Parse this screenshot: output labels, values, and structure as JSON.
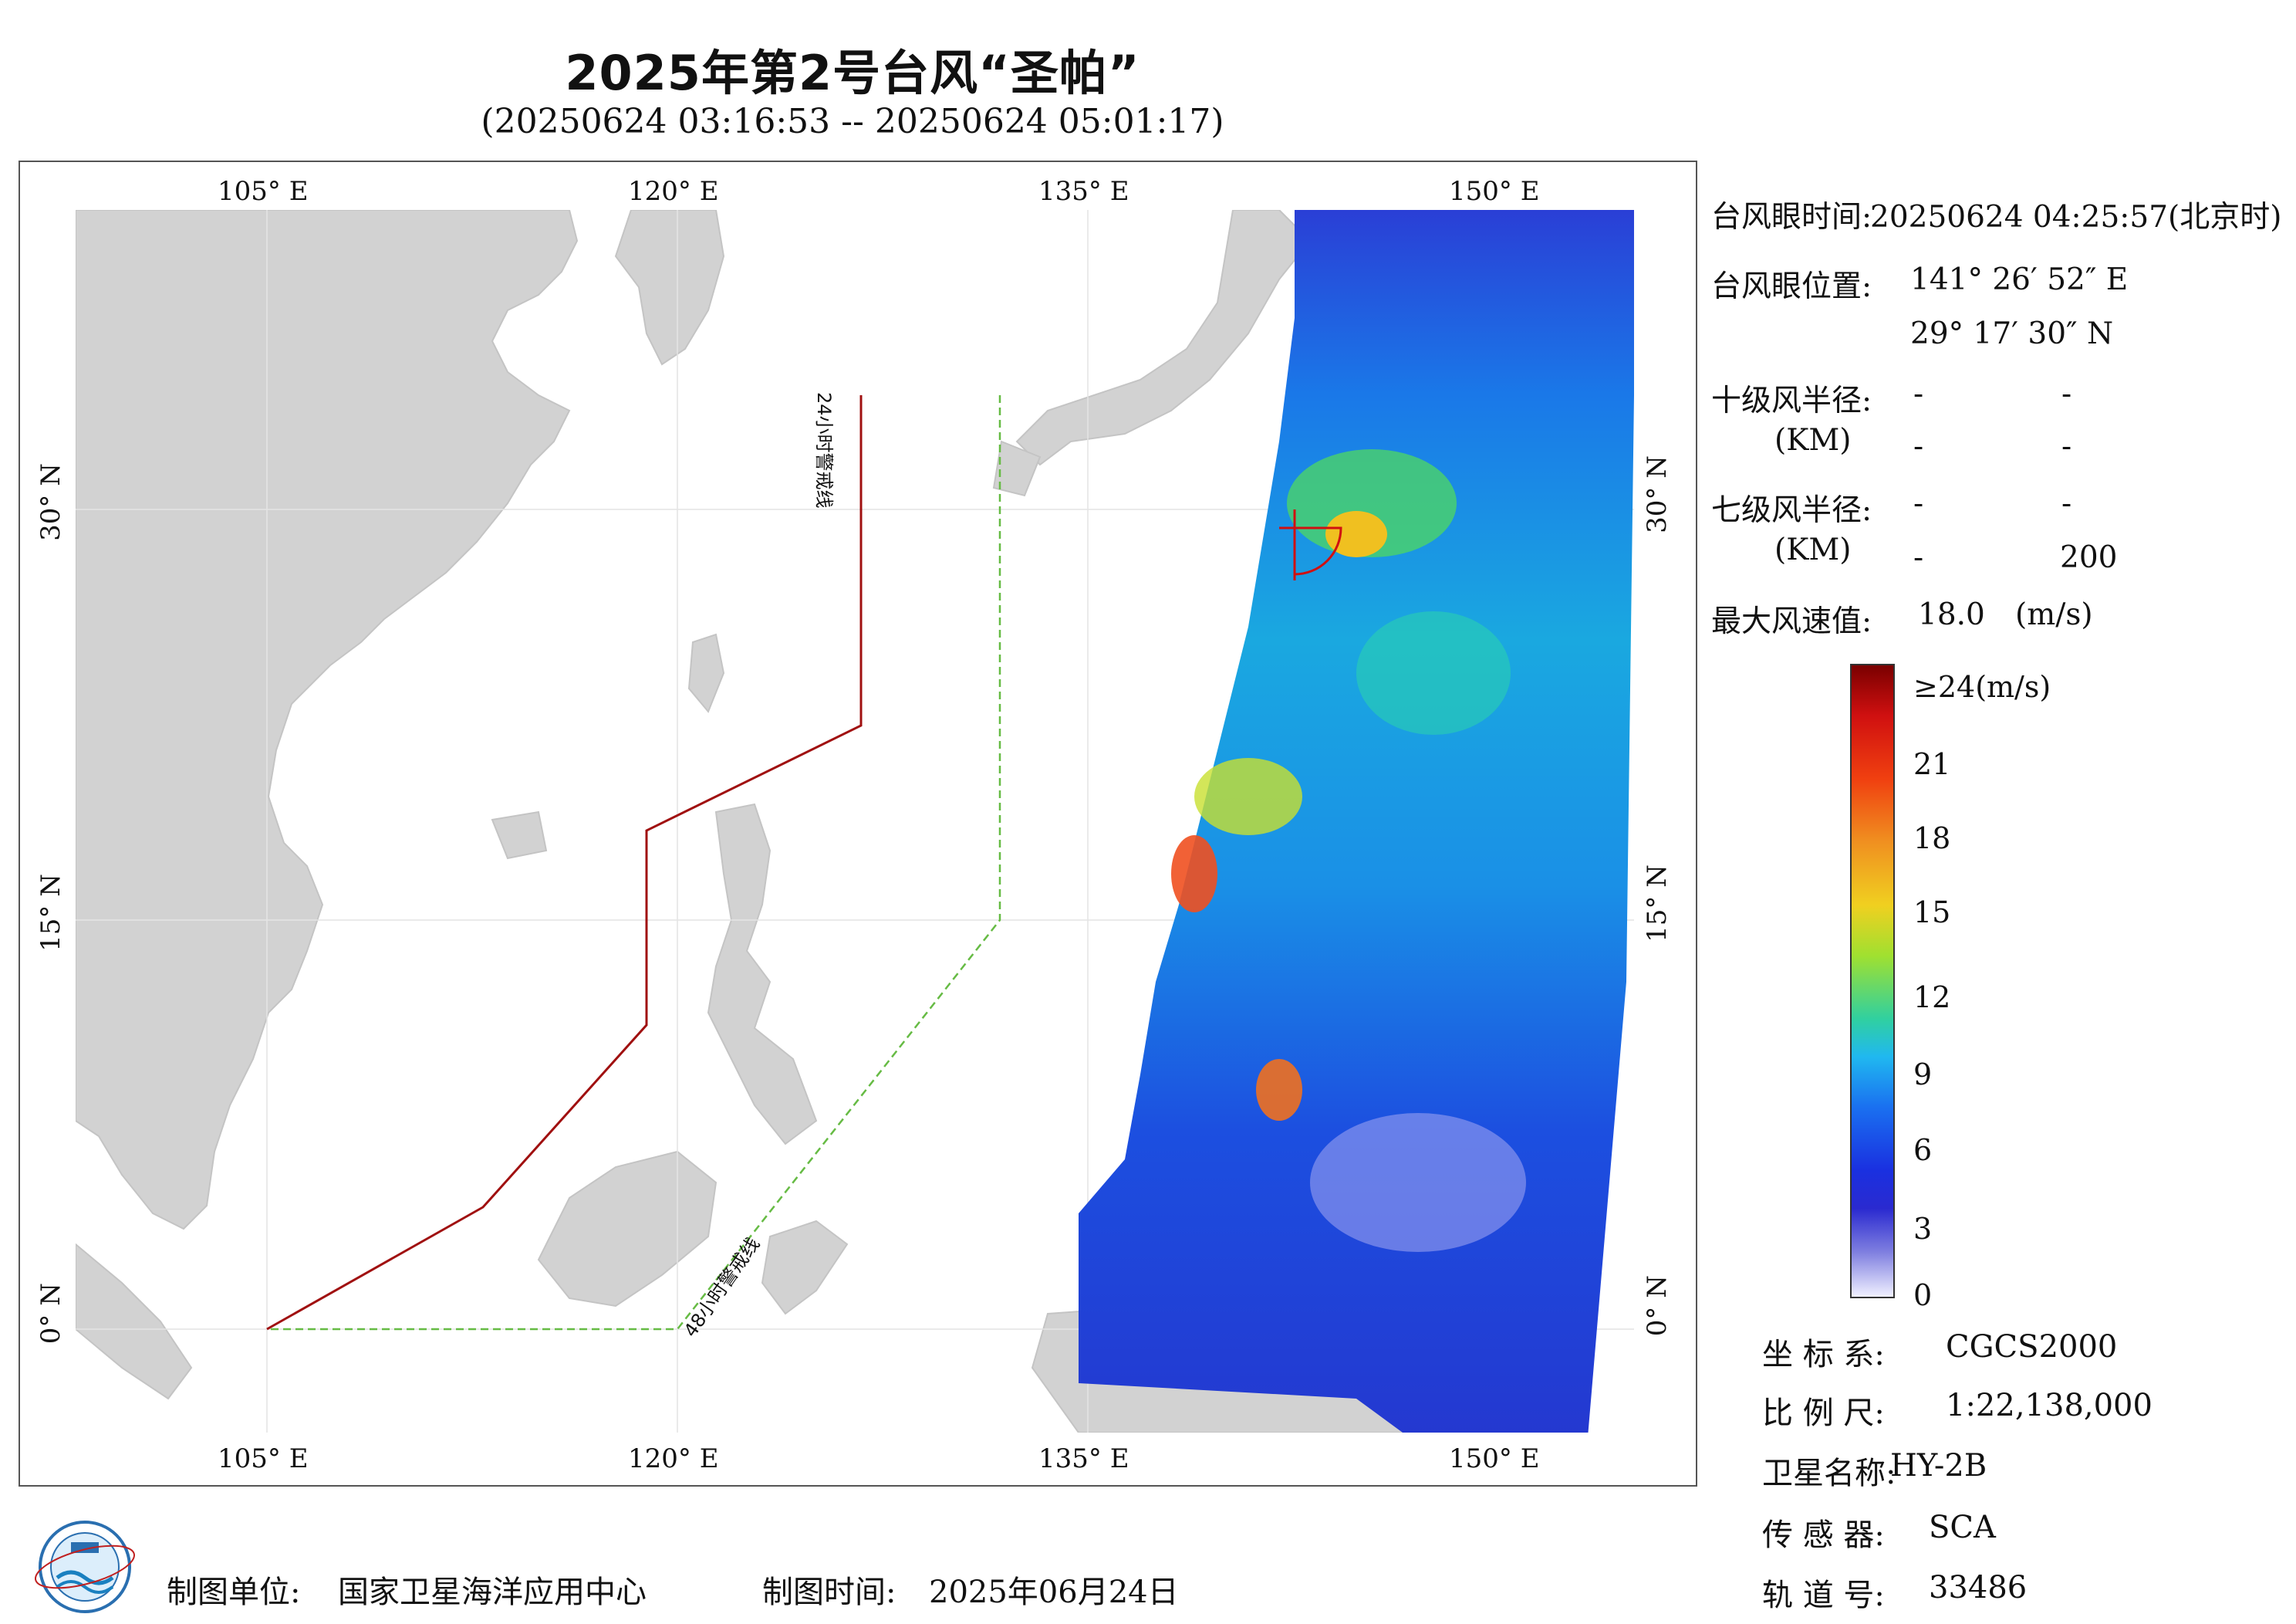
{
  "title": "2025年第2号台风“圣帕”",
  "subtitle": "(20250624 03:16:53 -- 20250624 05:01:17)",
  "map": {
    "lon_labels": [
      "105° E",
      "120° E",
      "135° E",
      "150° E"
    ],
    "lat_labels": [
      "30° N",
      "15° N",
      "0° N"
    ],
    "warning_line_24h": "24小时警戒线",
    "warning_line_48h": "48小时警戒线",
    "colors": {
      "land": "#d2d2d2",
      "sea": "#ffffff",
      "line_24h": "#a01010",
      "line_48h": "#66bb44"
    }
  },
  "info": {
    "eye_time_label": "台风眼时间:",
    "eye_time_value": "20250624 04:25:57(北京时)",
    "eye_pos_label": "台风眼位置:",
    "eye_lon": "141° 26′ 52″ E",
    "eye_lat": "29° 17′ 30″ N",
    "r10_label": "十级风半径:",
    "r10_unit": "(KM)",
    "r10_v1": "-",
    "r10_v2": "-",
    "r10_v3": "-",
    "r10_v4": "-",
    "r7_label": "七级风半径:",
    "r7_unit": "(KM)",
    "r7_v1": "-",
    "r7_v2": "-",
    "r7_v3": "-",
    "r7_v4": "200",
    "max_wind_label": "最大风速值:",
    "max_wind_value": "18.0",
    "max_wind_unit": "(m/s)"
  },
  "colorbar": {
    "top_label": "≥24(m/s)",
    "ticks": [
      "21",
      "18",
      "15",
      "12",
      "9",
      "6",
      "3",
      "0"
    ]
  },
  "meta": {
    "coord_label": "坐 标 系:",
    "coord_value": "CGCS2000",
    "scale_label": "比 例 尺:",
    "scale_value": "1:22,138,000",
    "sat_label": "卫星名称:",
    "sat_value": "HY-2B",
    "sensor_label": "传 感 器:",
    "sensor_value": "SCA",
    "orbit_label": "轨 道 号:",
    "orbit_value": "33486"
  },
  "footer": {
    "org_label": "制图单位:",
    "org_value": "国家卫星海洋应用中心",
    "date_label": "制图时间:",
    "date_value": "2025年06月24日"
  }
}
